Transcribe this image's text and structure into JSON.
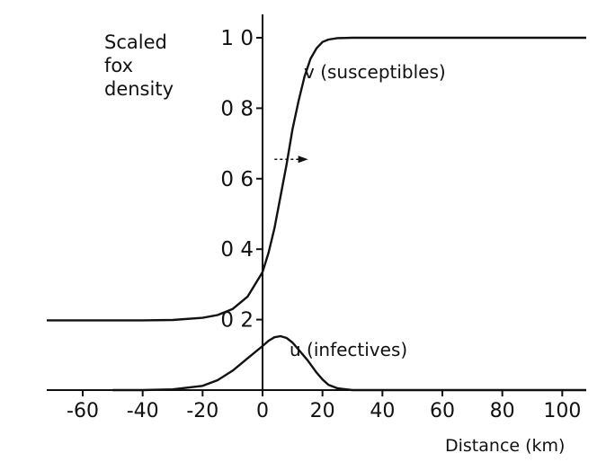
{
  "chart_data": {
    "type": "line",
    "ylabel_lines": [
      "Scaled",
      "fox",
      "density"
    ],
    "xlabel": "Distance (km)",
    "xlim": [
      -72,
      108
    ],
    "ylim": [
      0,
      1.0
    ],
    "grid": false,
    "x_ticks": [
      -60,
      -40,
      -20,
      0,
      20,
      40,
      60,
      80,
      100
    ],
    "x_tick_labels": [
      "-60",
      "-40",
      "-20",
      "0",
      "20",
      "40",
      "60",
      "80",
      "100"
    ],
    "y_ticks": [
      0.2,
      0.4,
      0.6,
      0.8,
      1.0
    ],
    "y_tick_labels": [
      "0 2",
      "0 4",
      "0 6",
      "0 8",
      "1 0"
    ],
    "series": [
      {
        "name": "v (susceptibles)",
        "color": "#111111",
        "x": [
          -72,
          -40,
          -30,
          -20,
          -15,
          -10,
          -5,
          0,
          2,
          4,
          6,
          8,
          10,
          12,
          14,
          16,
          18,
          20,
          22,
          25,
          30,
          50,
          80,
          108
        ],
        "y": [
          0.198,
          0.198,
          0.199,
          0.205,
          0.213,
          0.23,
          0.265,
          0.335,
          0.39,
          0.46,
          0.55,
          0.64,
          0.74,
          0.82,
          0.89,
          0.94,
          0.97,
          0.988,
          0.995,
          0.999,
          1.0,
          1.0,
          1.0,
          1.0
        ]
      },
      {
        "name": "u (infectives)",
        "color": "#111111",
        "x": [
          -50,
          -40,
          -30,
          -20,
          -15,
          -10,
          -5,
          0,
          2,
          4,
          6,
          8,
          10,
          12,
          15,
          18,
          20,
          22,
          25,
          30,
          40,
          60,
          108
        ],
        "y": [
          0.0,
          0.0,
          0.002,
          0.012,
          0.028,
          0.055,
          0.09,
          0.125,
          0.14,
          0.15,
          0.153,
          0.148,
          0.135,
          0.115,
          0.085,
          0.05,
          0.03,
          0.015,
          0.005,
          0.0,
          0.0,
          0.0,
          0.0
        ]
      }
    ],
    "annotations": [
      {
        "text": "v (susceptibles)",
        "series": 0
      },
      {
        "text": "u (infectives)",
        "series": 1
      }
    ],
    "arrow": {
      "direction": "right",
      "x_from": 4,
      "x_to": 14,
      "y": 0.655
    }
  }
}
